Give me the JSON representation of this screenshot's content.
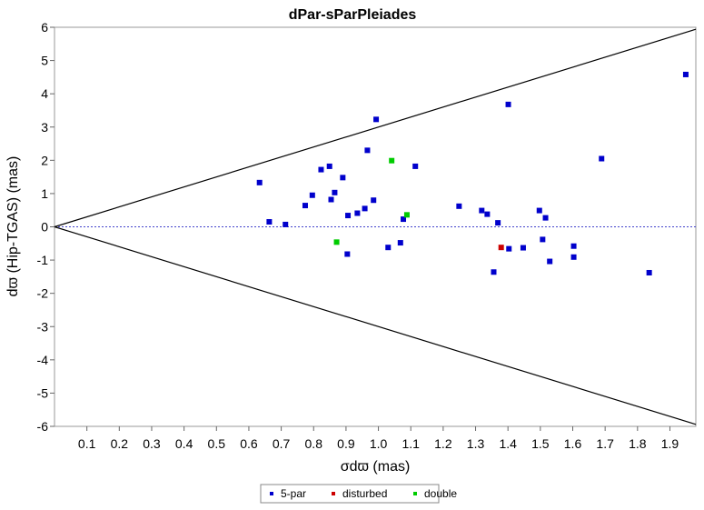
{
  "chart_data": {
    "type": "scatter",
    "title": "dPar-sParPleiades",
    "xlabel": "σdϖ (mas)",
    "ylabel": "dϖ (Hip-TGAS) (mas)",
    "xlim": [
      0,
      1.98
    ],
    "ylim": [
      -6,
      6
    ],
    "x_ticks": [
      0.1,
      0.2,
      0.3,
      0.4,
      0.5,
      0.6,
      0.7,
      0.8,
      0.9,
      1.0,
      1.1,
      1.2,
      1.3,
      1.4,
      1.5,
      1.6,
      1.7,
      1.8,
      1.9
    ],
    "x_tick_labels": [
      "0.1",
      "0.2",
      "0.3",
      "0.4",
      "0.5",
      "0.6",
      "0.7",
      "0.8",
      "0.9",
      "1.0",
      "1.1",
      "1.2",
      "1.3",
      "1.4",
      "1.5",
      "1.6",
      "1.7",
      "1.8",
      "1.9"
    ],
    "y_ticks": [
      -6,
      -5,
      -4,
      -3,
      -2,
      -1,
      0,
      1,
      2,
      3,
      4,
      5,
      6
    ],
    "y_tick_labels": [
      "-6",
      "-5",
      "-4",
      "-3",
      "-2",
      "-1",
      "0",
      "1",
      "2",
      "3",
      "4",
      "5",
      "6"
    ],
    "grid": false,
    "legend_position": "bottom-center",
    "reference_lines": {
      "zero_line": {
        "y": 0,
        "style": "dotted",
        "color": "#4444cc"
      },
      "envelope": {
        "slope": 3.0,
        "color": "#000000"
      }
    },
    "series": [
      {
        "name": "5-par",
        "color": "#0000cc",
        "points": [
          [
            0.633,
            1.33
          ],
          [
            0.663,
            0.15
          ],
          [
            0.713,
            0.07
          ],
          [
            0.774,
            0.64
          ],
          [
            0.796,
            0.95
          ],
          [
            0.823,
            1.72
          ],
          [
            0.849,
            1.82
          ],
          [
            0.854,
            0.82
          ],
          [
            0.865,
            1.03
          ],
          [
            0.89,
            1.48
          ],
          [
            0.904,
            -0.82
          ],
          [
            0.906,
            0.34
          ],
          [
            0.935,
            0.41
          ],
          [
            0.958,
            0.55
          ],
          [
            0.966,
            2.3
          ],
          [
            0.985,
            0.8
          ],
          [
            0.993,
            3.23
          ],
          [
            1.03,
            -0.62
          ],
          [
            1.068,
            -0.48
          ],
          [
            1.077,
            0.23
          ],
          [
            1.114,
            1.82
          ],
          [
            1.249,
            0.62
          ],
          [
            1.319,
            0.49
          ],
          [
            1.336,
            0.38
          ],
          [
            1.356,
            -1.36
          ],
          [
            1.369,
            0.12
          ],
          [
            1.401,
            3.68
          ],
          [
            1.403,
            -0.66
          ],
          [
            1.447,
            -0.63
          ],
          [
            1.497,
            0.49
          ],
          [
            1.507,
            -0.38
          ],
          [
            1.516,
            0.27
          ],
          [
            1.529,
            -1.04
          ],
          [
            1.603,
            -0.58
          ],
          [
            1.603,
            -0.91
          ],
          [
            1.689,
            2.05
          ],
          [
            1.836,
            -1.38
          ],
          [
            1.949,
            4.58
          ]
        ]
      },
      {
        "name": "disturbed",
        "color": "#cc0000",
        "points": [
          [
            1.379,
            -0.62
          ]
        ]
      },
      {
        "name": "double",
        "color": "#00cc00",
        "points": [
          [
            0.871,
            -0.46
          ],
          [
            1.041,
            1.99
          ],
          [
            1.088,
            0.36
          ]
        ]
      }
    ]
  }
}
